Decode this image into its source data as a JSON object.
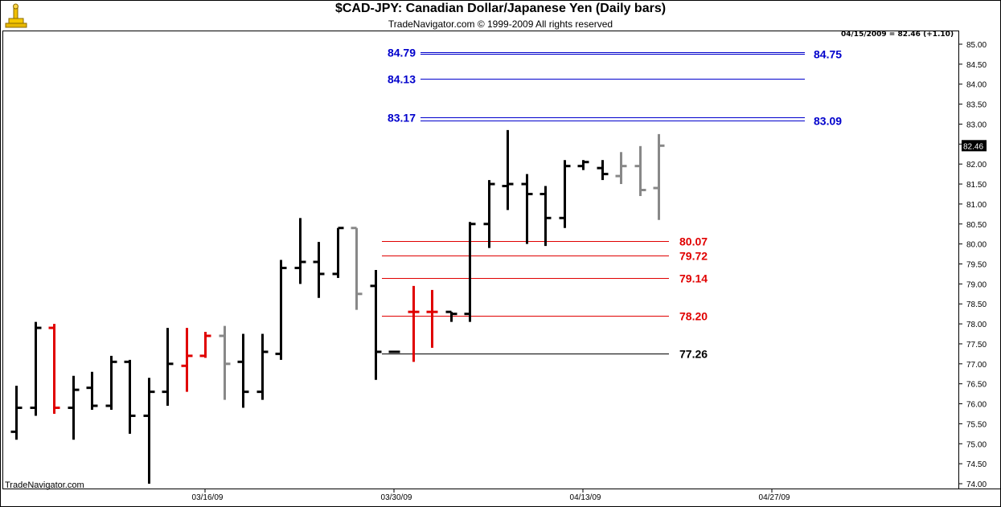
{
  "header": {
    "title": "$CAD-JPY:  Canadian Dollar/Japanese Yen  (Daily bars)",
    "subtitle": "TradeNavigator.com © 1999-2009 All rights reserved",
    "quote": "04/15/2009 = 82.46 (+1.10)",
    "brand": "TradeNavigator.com",
    "logo_icon": "trade-navigator-logo-icon"
  },
  "chart_data": {
    "type": "ohlc",
    "title": "$CAD-JPY:  Canadian Dollar/Japanese Yen  (Daily bars)",
    "ylim": [
      74.0,
      85.0
    ],
    "y_ticks": [
      "74.00",
      "74.50",
      "75.00",
      "75.50",
      "76.00",
      "76.50",
      "77.00",
      "77.50",
      "78.00",
      "78.50",
      "79.00",
      "79.50",
      "80.00",
      "80.50",
      "81.00",
      "81.50",
      "82.00",
      "82.50",
      "83.00",
      "83.50",
      "84.00",
      "84.50",
      "85.00"
    ],
    "x_labels": [
      {
        "label": "03/16/09",
        "bar": 10
      },
      {
        "label": "03/30/09",
        "bar": 20
      },
      {
        "label": "04/13/09",
        "bar": 30
      },
      {
        "label": "04/27/09",
        "bar": 40
      }
    ],
    "last_price": "82.46",
    "colors": {
      "up": "#000000",
      "reversal": "#e00000",
      "neutral": "#888888",
      "blue": "#0000cc",
      "red": "#e00000"
    },
    "bars": [
      {
        "o": 75.3,
        "h": 76.45,
        "l": 75.1,
        "c": 75.9,
        "color": "#000000"
      },
      {
        "o": 75.9,
        "h": 78.05,
        "l": 75.7,
        "c": 77.9,
        "color": "#000000"
      },
      {
        "o": 77.9,
        "h": 78.0,
        "l": 75.75,
        "c": 75.9,
        "color": "#e00000"
      },
      {
        "o": 75.9,
        "h": 76.7,
        "l": 75.1,
        "c": 76.35,
        "color": "#000000"
      },
      {
        "o": 76.4,
        "h": 76.8,
        "l": 75.85,
        "c": 75.95,
        "color": "#000000"
      },
      {
        "o": 75.95,
        "h": 77.2,
        "l": 75.85,
        "c": 77.05,
        "color": "#000000"
      },
      {
        "o": 77.05,
        "h": 77.1,
        "l": 75.25,
        "c": 75.7,
        "color": "#000000"
      },
      {
        "o": 75.7,
        "h": 76.65,
        "l": 74.0,
        "c": 76.3,
        "color": "#000000"
      },
      {
        "o": 76.3,
        "h": 77.9,
        "l": 75.95,
        "c": 77.0,
        "color": "#000000"
      },
      {
        "o": 76.95,
        "h": 77.9,
        "l": 76.3,
        "c": 77.2,
        "color": "#e00000"
      },
      {
        "o": 77.2,
        "h": 77.8,
        "l": 77.15,
        "c": 77.7,
        "color": "#e00000"
      },
      {
        "o": 77.7,
        "h": 77.95,
        "l": 76.1,
        "c": 77.0,
        "color": "#888888"
      },
      {
        "o": 77.05,
        "h": 77.75,
        "l": 75.9,
        "c": 76.3,
        "color": "#000000"
      },
      {
        "o": 76.3,
        "h": 77.75,
        "l": 76.1,
        "c": 77.3,
        "color": "#000000"
      },
      {
        "o": 77.25,
        "h": 79.6,
        "l": 77.1,
        "c": 79.4,
        "color": "#000000"
      },
      {
        "o": 79.4,
        "h": 80.65,
        "l": 79.0,
        "c": 79.55,
        "color": "#000000"
      },
      {
        "o": 79.55,
        "h": 80.05,
        "l": 78.65,
        "c": 79.25,
        "color": "#000000"
      },
      {
        "o": 79.25,
        "h": 80.4,
        "l": 79.15,
        "c": 80.4,
        "color": "#000000"
      },
      {
        "o": 80.4,
        "h": 80.4,
        "l": 78.35,
        "c": 78.75,
        "color": "#888888"
      },
      {
        "o": 78.95,
        "h": 79.35,
        "l": 76.6,
        "c": 77.3,
        "color": "#000000"
      },
      {
        "o": 77.3,
        "h": 77.3,
        "l": 77.3,
        "c": 77.3,
        "color": "#000000"
      },
      {
        "o": 78.3,
        "h": 78.95,
        "l": 77.05,
        "c": 78.3,
        "color": "#e00000"
      },
      {
        "o": 78.3,
        "h": 78.85,
        "l": 77.4,
        "c": 78.3,
        "color": "#e00000"
      },
      {
        "o": 78.3,
        "h": 78.3,
        "l": 78.05,
        "c": 78.25,
        "color": "#000000"
      },
      {
        "o": 78.25,
        "h": 80.55,
        "l": 78.05,
        "c": 80.5,
        "color": "#000000"
      },
      {
        "o": 80.5,
        "h": 81.6,
        "l": 79.9,
        "c": 81.5,
        "color": "#000000"
      },
      {
        "o": 81.45,
        "h": 82.85,
        "l": 80.85,
        "c": 81.5,
        "color": "#000000"
      },
      {
        "o": 81.5,
        "h": 81.75,
        "l": 80.0,
        "c": 81.25,
        "color": "#000000"
      },
      {
        "o": 81.25,
        "h": 81.45,
        "l": 79.95,
        "c": 80.65,
        "color": "#000000"
      },
      {
        "o": 80.65,
        "h": 82.1,
        "l": 80.4,
        "c": 81.95,
        "color": "#000000"
      },
      {
        "o": 81.95,
        "h": 82.1,
        "l": 81.85,
        "c": 82.05,
        "color": "#000000"
      },
      {
        "o": 81.9,
        "h": 82.1,
        "l": 81.6,
        "c": 81.75,
        "color": "#000000"
      },
      {
        "o": 81.7,
        "h": 82.3,
        "l": 81.5,
        "c": 81.95,
        "color": "#888888"
      },
      {
        "o": 81.95,
        "h": 82.45,
        "l": 81.2,
        "c": 81.35,
        "color": "#888888"
      },
      {
        "o": 81.4,
        "h": 82.75,
        "l": 80.6,
        "c": 82.46,
        "color": "#888888"
      }
    ],
    "levels": [
      {
        "price": 84.79,
        "label": "84.79",
        "side": "left",
        "color": "#0000cc",
        "double": true
      },
      {
        "price": 84.75,
        "label": "84.75",
        "side": "right",
        "color": "#0000cc",
        "double": true
      },
      {
        "price": 84.13,
        "label": "84.13",
        "side": "left",
        "color": "#0000cc",
        "double": false
      },
      {
        "price": 83.17,
        "label": "83.17",
        "side": "left",
        "color": "#0000cc",
        "double": true
      },
      {
        "price": 83.09,
        "label": "83.09",
        "side": "right",
        "color": "#0000cc",
        "double": true
      },
      {
        "price": 80.07,
        "label": "80.07",
        "side": "right",
        "color": "#e00000",
        "double": false
      },
      {
        "price": 79.72,
        "label": "79.72",
        "side": "right",
        "color": "#e00000",
        "double": false
      },
      {
        "price": 79.14,
        "label": "79.14",
        "side": "right",
        "color": "#e00000",
        "double": false
      },
      {
        "price": 78.2,
        "label": "78.20",
        "side": "right",
        "color": "#e00000",
        "double": false
      },
      {
        "price": 77.26,
        "label": "77.26",
        "side": "right",
        "color": "#000000",
        "double": false
      }
    ]
  }
}
